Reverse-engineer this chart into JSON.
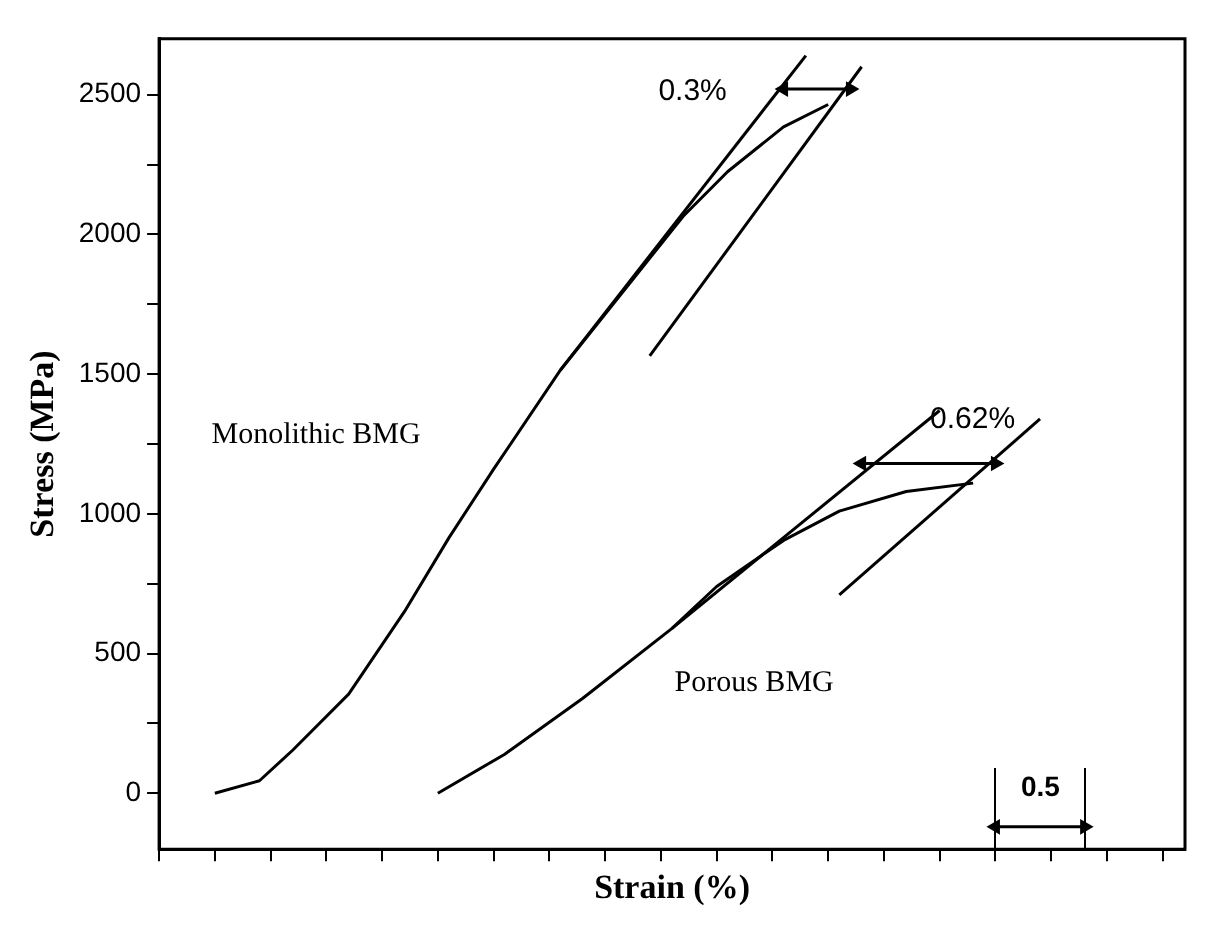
{
  "chart_data": {
    "type": "line",
    "xlabel": "Strain (%)",
    "ylabel": "Stress (MPa)",
    "categories": [
      null,
      null,
      null,
      null,
      null,
      null,
      null,
      null,
      null,
      null,
      null,
      null,
      null,
      null,
      null,
      null,
      null,
      null,
      null,
      null,
      null,
      null,
      null,
      null,
      null,
      null,
      null,
      null,
      null,
      null,
      null,
      null,
      null,
      null,
      null,
      null,
      null,
      null,
      null,
      null,
      null,
      null,
      null,
      null,
      null,
      null,
      null,
      null,
      null,
      null,
      null,
      null,
      null,
      null,
      null,
      null,
      null,
      null,
      null,
      null,
      null,
      null,
      null,
      null,
      null,
      null,
      null,
      null,
      null,
      null,
      null,
      null,
      null,
      null,
      null,
      null,
      null,
      null,
      null,
      null,
      null,
      null,
      null,
      null,
      null,
      null,
      null,
      null,
      null,
      null,
      null,
      null,
      null
    ],
    "ylim": [
      -200,
      2700
    ],
    "yticks": [
      0,
      {
        "value": 250,
        "label": null
      },
      500,
      {
        "value": 750,
        "label": null
      },
      1000,
      {
        "value": 1250,
        "label": null
      },
      1500,
      {
        "value": 1750,
        "label": null
      },
      2000,
      {
        "value": 2250,
        "label": null
      },
      2500
    ],
    "tick_labels": "y",
    "marker": "none",
    "line_style": "solid",
    "series": [
      {
        "color": "#000000",
        "values": [
          null,
          null,
          null,
          null,
          null,
          0,
          null,
          null,
          null,
          45,
          null,
          null,
          155,
          null,
          null,
          null,
          null,
          355,
          null,
          null,
          null,
          null,
          650,
          null,
          null,
          null,
          915,
          null,
          null,
          null,
          1160,
          null,
          null,
          null,
          null,
          null,
          1515,
          null,
          null,
          null,
          null,
          null,
          null,
          null,
          null,
          null,
          null,
          2065,
          null,
          null,
          null,
          2225,
          null,
          null,
          null,
          null,
          2385,
          null,
          null,
          null,
          2465,
          null,
          null,
          null,
          null,
          null,
          null,
          null,
          null,
          null,
          null,
          null,
          null,
          null,
          null,
          null,
          null,
          null,
          null,
          null,
          null,
          null,
          null,
          null,
          null,
          null,
          null,
          null,
          null,
          null,
          null,
          null,
          null
        ]
      },
      {
        "color": "#000000",
        "values": [
          null,
          null,
          null,
          null,
          null,
          null,
          null,
          null,
          null,
          null,
          null,
          null,
          null,
          null,
          null,
          null,
          null,
          null,
          null,
          null,
          null,
          null,
          null,
          null,
          null,
          null,
          null,
          null,
          null,
          null,
          null,
          null,
          null,
          null,
          null,
          null,
          1515,
          null,
          null,
          null,
          null,
          null,
          null,
          null,
          null,
          null,
          null,
          null,
          null,
          null,
          null,
          null,
          null,
          null,
          null,
          null,
          null,
          null,
          2640,
          null,
          null,
          null,
          null,
          null,
          null,
          null,
          null,
          null,
          null,
          null,
          null,
          null,
          null,
          null,
          null,
          null,
          null,
          null,
          null,
          null,
          null,
          null,
          null,
          null,
          null,
          null,
          null,
          null,
          null,
          null,
          null,
          null,
          null
        ]
      },
      {
        "color": "#000000",
        "values": [
          null,
          null,
          null,
          null,
          null,
          null,
          null,
          null,
          null,
          null,
          null,
          null,
          null,
          null,
          null,
          null,
          null,
          null,
          null,
          null,
          null,
          null,
          null,
          null,
          null,
          null,
          null,
          null,
          null,
          null,
          null,
          null,
          null,
          null,
          null,
          null,
          null,
          null,
          null,
          null,
          null,
          null,
          null,
          null,
          1565,
          null,
          null,
          null,
          null,
          null,
          null,
          null,
          null,
          null,
          null,
          null,
          null,
          null,
          null,
          null,
          null,
          null,
          null,
          2600,
          null,
          null,
          null,
          null,
          null,
          null,
          null,
          null,
          null,
          null,
          null,
          null,
          null,
          null,
          null,
          null,
          null,
          null,
          null,
          null,
          null,
          null,
          null,
          null,
          null,
          null,
          null,
          null,
          null
        ]
      },
      {
        "color": "#000000",
        "values": [
          null,
          null,
          null,
          null,
          null,
          null,
          null,
          null,
          null,
          null,
          null,
          null,
          null,
          null,
          null,
          null,
          null,
          null,
          null,
          null,
          null,
          null,
          null,
          null,
          null,
          0,
          null,
          null,
          null,
          null,
          null,
          140,
          null,
          null,
          null,
          null,
          null,
          null,
          340,
          null,
          null,
          null,
          null,
          null,
          null,
          null,
          590,
          null,
          null,
          null,
          740,
          null,
          null,
          null,
          null,
          null,
          905,
          null,
          null,
          null,
          null,
          1010,
          null,
          null,
          null,
          null,
          null,
          1080,
          null,
          null,
          null,
          null,
          null,
          1110,
          null,
          null,
          null,
          null,
          null,
          null,
          null,
          null,
          null,
          null,
          null,
          null,
          null,
          null,
          null,
          null,
          null,
          null,
          null
        ]
      },
      {
        "color": "#000000",
        "values": [
          null,
          null,
          null,
          null,
          null,
          null,
          null,
          null,
          null,
          null,
          null,
          null,
          null,
          null,
          null,
          null,
          null,
          null,
          null,
          null,
          null,
          null,
          null,
          null,
          null,
          null,
          null,
          null,
          null,
          null,
          null,
          null,
          null,
          null,
          null,
          null,
          null,
          null,
          null,
          null,
          null,
          null,
          null,
          null,
          null,
          null,
          590,
          null,
          null,
          null,
          null,
          null,
          null,
          null,
          null,
          null,
          null,
          null,
          null,
          null,
          null,
          null,
          null,
          null,
          null,
          null,
          null,
          null,
          null,
          null,
          1370,
          null,
          null,
          null,
          null,
          null,
          null,
          null,
          null,
          null,
          null,
          null,
          null,
          null,
          null,
          null,
          null,
          null,
          null,
          null,
          null,
          null,
          null
        ]
      },
      {
        "color": "#000000",
        "values": [
          null,
          null,
          null,
          null,
          null,
          null,
          null,
          null,
          null,
          null,
          null,
          null,
          null,
          null,
          null,
          null,
          null,
          null,
          null,
          null,
          null,
          null,
          null,
          null,
          null,
          null,
          null,
          null,
          null,
          null,
          null,
          null,
          null,
          null,
          null,
          null,
          null,
          null,
          null,
          null,
          null,
          null,
          null,
          null,
          null,
          null,
          null,
          null,
          null,
          null,
          null,
          null,
          null,
          null,
          null,
          null,
          null,
          null,
          null,
          null,
          null,
          710,
          null,
          null,
          null,
          null,
          null,
          null,
          null,
          null,
          null,
          null,
          null,
          null,
          null,
          null,
          null,
          null,
          null,
          1340,
          null,
          null,
          null,
          null,
          null,
          null,
          null,
          null,
          null,
          null,
          null,
          null,
          null
        ]
      },
      {
        "color": "#000000",
        "marker": "triangle",
        "values": [
          null,
          null,
          null,
          null,
          null,
          null,
          null,
          null,
          null,
          null,
          null,
          null,
          null,
          null,
          null,
          null,
          null,
          null,
          null,
          null,
          null,
          null,
          null,
          null,
          null,
          null,
          null,
          null,
          null,
          null,
          null,
          null,
          null,
          null,
          null,
          null,
          null,
          null,
          null,
          null,
          null,
          null,
          null,
          null,
          null,
          null,
          null,
          null,
          null,
          null,
          null,
          null,
          null,
          null,
          null,
          null,
          2520,
          null,
          null,
          null,
          null,
          null,
          2520,
          null,
          null,
          null,
          null,
          null,
          null,
          null,
          null,
          null,
          null,
          null,
          null,
          null,
          null,
          null,
          null,
          null,
          null,
          null,
          null,
          null,
          null,
          null,
          null,
          null,
          null,
          null,
          null,
          null,
          null
        ]
      },
      {
        "color": "#000000",
        "marker": "triangle",
        "values": [
          null,
          null,
          null,
          null,
          null,
          null,
          null,
          null,
          null,
          null,
          null,
          null,
          null,
          null,
          null,
          null,
          null,
          null,
          null,
          null,
          null,
          null,
          null,
          null,
          null,
          null,
          null,
          null,
          null,
          null,
          null,
          null,
          null,
          null,
          null,
          null,
          null,
          null,
          null,
          null,
          null,
          null,
          null,
          null,
          null,
          null,
          null,
          null,
          null,
          null,
          null,
          null,
          null,
          null,
          null,
          null,
          null,
          null,
          null,
          null,
          null,
          null,
          null,
          1180,
          null,
          null,
          null,
          null,
          null,
          null,
          null,
          null,
          null,
          null,
          null,
          1180,
          null,
          null,
          null,
          null,
          null,
          null,
          null,
          null,
          null,
          null,
          null,
          null,
          null,
          null,
          null,
          null,
          null
        ]
      },
      {
        "color": "#000000",
        "marker": "triangle",
        "values": [
          null,
          null,
          null,
          null,
          null,
          null,
          null,
          null,
          null,
          null,
          null,
          null,
          null,
          null,
          null,
          null,
          null,
          null,
          null,
          null,
          null,
          null,
          null,
          null,
          null,
          null,
          null,
          null,
          null,
          null,
          null,
          null,
          null,
          null,
          null,
          null,
          null,
          null,
          null,
          null,
          null,
          null,
          null,
          null,
          null,
          null,
          null,
          null,
          null,
          null,
          null,
          null,
          null,
          null,
          null,
          null,
          null,
          null,
          null,
          null,
          null,
          null,
          null,
          null,
          null,
          null,
          null,
          null,
          null,
          null,
          null,
          null,
          null,
          null,
          null,
          -120,
          null,
          null,
          null,
          null,
          null,
          null,
          null,
          -120,
          null,
          null,
          null,
          null,
          null,
          null,
          null,
          null,
          null
        ]
      }
    ],
    "annotations": [
      "Monolithic BMG",
      "Porous BMG",
      "0.3%",
      "0.62%",
      "0.5"
    ]
  }
}
